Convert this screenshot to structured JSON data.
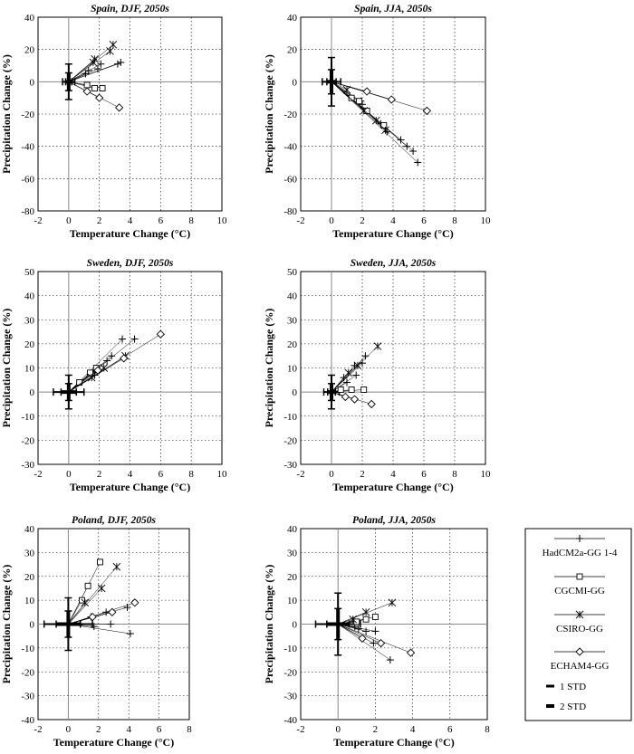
{
  "figure": {
    "legend": {
      "entries": [
        {
          "label": "HadCM2a-GG 1-4",
          "marker": "plus"
        },
        {
          "label": "CGCMI-GG",
          "marker": "square"
        },
        {
          "label": "CSIRO-GG",
          "marker": "asterisk"
        },
        {
          "label": "ECHAM4-GG",
          "marker": "diamond"
        },
        {
          "label": "1 STD",
          "marker": "dash-thin"
        },
        {
          "label": "2 STD",
          "marker": "dash-thick"
        }
      ]
    }
  },
  "chart_data": [
    {
      "type": "scatter",
      "title": "Spain, DJF, 2050s",
      "xlabel": "Temperature Change (°C)",
      "ylabel": "Precipitation Change (%)",
      "xlim": [
        -2,
        10
      ],
      "ylim": [
        -80,
        40
      ],
      "xticks": [
        -2,
        0,
        2,
        4,
        6,
        8,
        10
      ],
      "yticks": [
        -80,
        -60,
        -40,
        -20,
        0,
        20,
        40
      ],
      "grid": true,
      "std_cross": {
        "x_std": 0.2,
        "y_std": 5.5
      },
      "series": [
        {
          "name": "HadCM2a-GG 1-4",
          "marker": "plus",
          "x": [
            1.1,
            1.9,
            3.2,
            1.3,
            2.1,
            3.4
          ],
          "y": [
            5,
            8,
            11,
            7,
            11,
            12
          ]
        },
        {
          "name": "CGCMI-GG",
          "marker": "square",
          "x": [
            1.2,
            1.7,
            2.2
          ],
          "y": [
            -2,
            -4,
            -4
          ]
        },
        {
          "name": "CSIRO-GG",
          "marker": "asterisk",
          "x": [
            1.7,
            2.9,
            1.6,
            2.7
          ],
          "y": [
            14,
            23,
            12,
            19
          ]
        },
        {
          "name": "ECHAM4-GG",
          "marker": "diamond",
          "x": [
            1.2,
            2.0,
            3.3
          ],
          "y": [
            -6,
            -10,
            -16
          ]
        }
      ]
    },
    {
      "type": "scatter",
      "title": "Spain, JJA, 2050s",
      "xlabel": "Temperature Change (°C)",
      "ylabel": "Precipitation Change (%)",
      "xlim": [
        -2,
        10
      ],
      "ylim": [
        -80,
        40
      ],
      "xticks": [
        -2,
        0,
        2,
        4,
        6,
        8,
        10
      ],
      "yticks": [
        -80,
        -60,
        -40,
        -20,
        0,
        20,
        40
      ],
      "grid": true,
      "std_cross": {
        "x_std": 0.3,
        "y_std": 7.5
      },
      "series": [
        {
          "name": "HadCM2a-GG 1-4",
          "marker": "plus",
          "x": [
            1.9,
            3.2,
            4.5,
            5.6,
            2.0,
            3.6,
            4.9,
            5.3
          ],
          "y": [
            -12,
            -26,
            -36,
            -50,
            -14,
            -31,
            -40,
            -43
          ]
        },
        {
          "name": "CGCMI-GG",
          "marker": "square",
          "x": [
            1.3,
            1.8,
            2.3,
            3.4
          ],
          "y": [
            -10,
            -12,
            -18,
            -27
          ]
        },
        {
          "name": "CSIRO-GG",
          "marker": "asterisk",
          "x": [
            1.0,
            2.1,
            2.9,
            3.5
          ],
          "y": [
            -5,
            -18,
            -24,
            -30
          ]
        },
        {
          "name": "ECHAM4-GG",
          "marker": "diamond",
          "x": [
            2.3,
            3.9,
            6.2
          ],
          "y": [
            -6,
            -11,
            -18
          ]
        }
      ]
    },
    {
      "type": "scatter",
      "title": "Sweden, DJF, 2050s",
      "xlabel": "Temperature Change (°C)",
      "ylabel": "Precipitation Change (%)",
      "xlim": [
        -2,
        10
      ],
      "ylim": [
        -30,
        50
      ],
      "xticks": [
        -2,
        0,
        2,
        4,
        6,
        8,
        10
      ],
      "yticks": [
        -30,
        -20,
        -10,
        0,
        10,
        20,
        30,
        40,
        50
      ],
      "grid": true,
      "std_cross": {
        "x_std": 0.5,
        "y_std": 3.5
      },
      "series": [
        {
          "name": "HadCM2a-GG 1-4",
          "marker": "plus",
          "x": [
            1.6,
            2.8,
            3.5,
            1.7,
            2.5,
            4.3
          ],
          "y": [
            8,
            15,
            22,
            7,
            13,
            22
          ]
        },
        {
          "name": "CGCMI-GG",
          "marker": "square",
          "x": [
            0.7,
            1.4,
            1.8
          ],
          "y": [
            4,
            8,
            10
          ]
        },
        {
          "name": "CSIRO-GG",
          "marker": "asterisk",
          "x": [
            1.5,
            2.3,
            3.7
          ],
          "y": [
            6,
            10,
            15
          ]
        },
        {
          "name": "ECHAM4-GG",
          "marker": "diamond",
          "x": [
            1.9,
            3.6,
            6.0
          ],
          "y": [
            9,
            14,
            24
          ]
        }
      ]
    },
    {
      "type": "scatter",
      "title": "Sweden, JJA, 2050s",
      "xlabel": "Temperature Change (°C)",
      "ylabel": "Precipitation Change (%)",
      "xlim": [
        -2,
        10
      ],
      "ylim": [
        -30,
        50
      ],
      "xticks": [
        -2,
        0,
        2,
        4,
        6,
        8,
        10
      ],
      "yticks": [
        -30,
        -20,
        -10,
        0,
        10,
        20,
        30,
        40,
        50
      ],
      "grid": true,
      "std_cross": {
        "x_std": 0.25,
        "y_std": 3.5
      },
      "series": [
        {
          "name": "HadCM2a-GG 1-4",
          "marker": "plus",
          "x": [
            0.8,
            1.5,
            2.2,
            1.0,
            1.6,
            2.0
          ],
          "y": [
            6,
            11,
            15,
            4,
            7,
            12
          ]
        },
        {
          "name": "CGCMI-GG",
          "marker": "square",
          "x": [
            0.6,
            1.3,
            2.1
          ],
          "y": [
            1,
            1,
            1
          ]
        },
        {
          "name": "CSIRO-GG",
          "marker": "asterisk",
          "x": [
            1.1,
            1.7,
            3.0
          ],
          "y": [
            8,
            11,
            19
          ]
        },
        {
          "name": "ECHAM4-GG",
          "marker": "diamond",
          "x": [
            0.9,
            1.5,
            2.6
          ],
          "y": [
            -2,
            -3,
            -5
          ]
        }
      ]
    },
    {
      "type": "scatter",
      "title": "Poland, DJF, 2050s",
      "xlabel": "Temperature Change (°C)",
      "ylabel": "Precipitation Change (%)",
      "xlim": [
        -2,
        8
      ],
      "ylim": [
        -40,
        40
      ],
      "xticks": [
        -2,
        0,
        2,
        4,
        6,
        8
      ],
      "yticks": [
        -40,
        -30,
        -20,
        -10,
        0,
        10,
        20,
        30,
        40
      ],
      "grid": true,
      "std_cross": {
        "x_std": 0.8,
        "y_std": 5.5
      },
      "series": [
        {
          "name": "HadCM2a-GG 1-4",
          "marker": "plus",
          "x": [
            1.5,
            2.5,
            3.9,
            1.7,
            2.8,
            4.1
          ],
          "y": [
            3,
            5,
            7,
            -1,
            0,
            -4
          ]
        },
        {
          "name": "CGCMI-GG",
          "marker": "square",
          "x": [
            0.9,
            1.3,
            2.1
          ],
          "y": [
            10,
            16,
            26
          ]
        },
        {
          "name": "CSIRO-GG",
          "marker": "asterisk",
          "x": [
            1.1,
            2.2,
            3.2
          ],
          "y": [
            9,
            15,
            24
          ]
        },
        {
          "name": "ECHAM4-GG",
          "marker": "diamond",
          "x": [
            1.6,
            2.9,
            4.4
          ],
          "y": [
            3,
            5,
            9
          ]
        }
      ]
    },
    {
      "type": "scatter",
      "title": "Poland, JJA, 2050s",
      "xlabel": "Temperature Change (°C)",
      "ylabel": "Precipitation Change (%)",
      "xlim": [
        -2,
        8
      ],
      "ylim": [
        -40,
        40
      ],
      "xticks": [
        -2,
        0,
        2,
        4,
        6,
        8
      ],
      "yticks": [
        -40,
        -30,
        -20,
        -10,
        0,
        10,
        20,
        30,
        40
      ],
      "grid": true,
      "std_cross": {
        "x_std": 0.6,
        "y_std": 6.5
      },
      "series": [
        {
          "name": "HadCM2a-GG 1-4",
          "marker": "plus",
          "x": [
            0.9,
            1.5,
            2.0,
            1.1,
            1.9,
            2.8
          ],
          "y": [
            -1,
            -3,
            -3,
            -2,
            -8,
            -15
          ]
        },
        {
          "name": "CGCMI-GG",
          "marker": "square",
          "x": [
            1.0,
            1.5,
            2.0
          ],
          "y": [
            1,
            2,
            3
          ]
        },
        {
          "name": "CSIRO-GG",
          "marker": "asterisk",
          "x": [
            0.8,
            1.5,
            2.9
          ],
          "y": [
            2,
            5,
            9
          ]
        },
        {
          "name": "ECHAM4-GG",
          "marker": "diamond",
          "x": [
            1.3,
            2.3,
            3.9
          ],
          "y": [
            -6,
            -8,
            -12
          ]
        }
      ]
    }
  ]
}
